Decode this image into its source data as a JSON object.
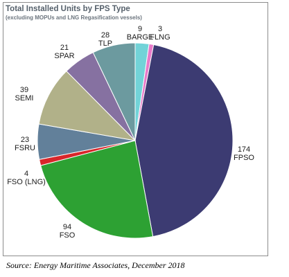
{
  "chart_data": {
    "type": "pie",
    "title": "Total Installed Units by FPS Type",
    "subtitle": "(excluding MOPUs and LNG Regasification vessels)",
    "slices": [
      {
        "label": "BARGE",
        "value": 9,
        "color": "#72d3d8"
      },
      {
        "label": "FLNG",
        "value": 3,
        "color": "#e87ac9"
      },
      {
        "label": "FPSO",
        "value": 174,
        "color": "#3c3b72"
      },
      {
        "label": "FSO",
        "value": 94,
        "color": "#2da133"
      },
      {
        "label": "FSO (LNG)",
        "value": 4,
        "color": "#d8262a"
      },
      {
        "label": "FSRU",
        "value": 23,
        "color": "#62809a"
      },
      {
        "label": "SEMI",
        "value": 39,
        "color": "#b1b189"
      },
      {
        "label": "SPAR",
        "value": 21,
        "color": "#8671a1"
      },
      {
        "label": "TLP",
        "value": 28,
        "color": "#6c9a9f"
      }
    ],
    "start_angle_deg": 0,
    "direction": "clockwise"
  },
  "source": "Source: Energy Maritime Associates, December 2018"
}
